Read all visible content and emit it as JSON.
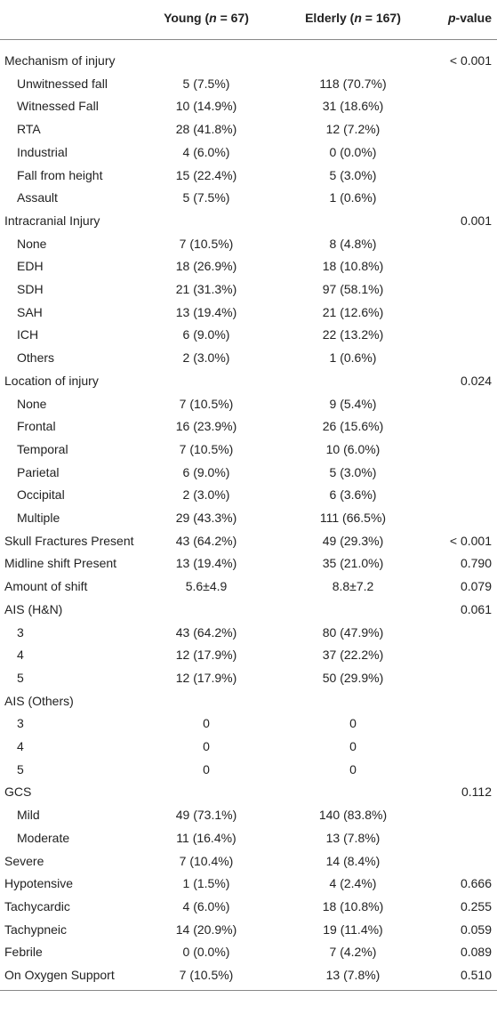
{
  "table": {
    "header": [
      {
        "parts": [
          "Young (",
          "n",
          " = 67)"
        ],
        "italic": [
          false,
          true,
          false
        ]
      },
      {
        "parts": [
          "Elderly (",
          "n",
          " = 167)"
        ],
        "italic": [
          false,
          true,
          false
        ]
      },
      {
        "parts": [
          "p",
          "-value"
        ],
        "italic": [
          true,
          false
        ]
      }
    ],
    "rows": [
      {
        "label": "Mechanism of injury",
        "p": "< 0.001",
        "indent": false
      },
      {
        "label": "Unwitnessed fall",
        "young": "5 (7.5%)",
        "elderly": "118 (70.7%)",
        "indent": true
      },
      {
        "label": "Witnessed Fall",
        "young": "10 (14.9%)",
        "elderly": "31 (18.6%)",
        "indent": true
      },
      {
        "label": "RTA",
        "young": "28 (41.8%)",
        "elderly": "12 (7.2%)",
        "indent": true
      },
      {
        "label": "Industrial",
        "young": "4 (6.0%)",
        "elderly": "0 (0.0%)",
        "indent": true
      },
      {
        "label": "Fall from height",
        "young": "15 (22.4%)",
        "elderly": "5 (3.0%)",
        "indent": true
      },
      {
        "label": "Assault",
        "young": "5 (7.5%)",
        "elderly": "1 (0.6%)",
        "indent": true
      },
      {
        "label": "Intracranial Injury",
        "p": "0.001",
        "indent": false
      },
      {
        "label": "None",
        "young": "7 (10.5%)",
        "elderly": "8 (4.8%)",
        "indent": true
      },
      {
        "label": "EDH",
        "young": "18 (26.9%)",
        "elderly": "18 (10.8%)",
        "indent": true
      },
      {
        "label": "SDH",
        "young": "21 (31.3%)",
        "elderly": "97 (58.1%)",
        "indent": true
      },
      {
        "label": "SAH",
        "young": "13 (19.4%)",
        "elderly": "21 (12.6%)",
        "indent": true
      },
      {
        "label": "ICH",
        "young": "6 (9.0%)",
        "elderly": "22 (13.2%)",
        "indent": true
      },
      {
        "label": "Others",
        "young": "2 (3.0%)",
        "elderly": "1 (0.6%)",
        "indent": true
      },
      {
        "label": "Location of injury",
        "p": "0.024",
        "indent": false
      },
      {
        "label": "None",
        "young": "7 (10.5%)",
        "elderly": "9 (5.4%)",
        "indent": true
      },
      {
        "label": "Frontal",
        "young": "16 (23.9%)",
        "elderly": "26 (15.6%)",
        "indent": true
      },
      {
        "label": "Temporal",
        "young": "7 (10.5%)",
        "elderly": "10 (6.0%)",
        "indent": true
      },
      {
        "label": "Parietal",
        "young": "6 (9.0%)",
        "elderly": "5 (3.0%)",
        "indent": true
      },
      {
        "label": "Occipital",
        "young": "2 (3.0%)",
        "elderly": "6 (3.6%)",
        "indent": true
      },
      {
        "label": "Multiple",
        "young": "29 (43.3%)",
        "elderly": "111 (66.5%)",
        "indent": true
      },
      {
        "label": "Skull Fractures Present",
        "young": "43 (64.2%)",
        "elderly": "49 (29.3%)",
        "p": "< 0.001",
        "indent": false
      },
      {
        "label": "Midline shift Present",
        "young": "13 (19.4%)",
        "elderly": "35 (21.0%)",
        "p": "0.790",
        "indent": false
      },
      {
        "label": "Amount of shift",
        "young": "5.6±4.9",
        "elderly": "8.8±7.2",
        "p": "0.079",
        "indent": false
      },
      {
        "label": "AIS (H&N)",
        "p": "0.061",
        "indent": false
      },
      {
        "label": "3",
        "young": "43 (64.2%)",
        "elderly": "80 (47.9%)",
        "indent": true
      },
      {
        "label": "4",
        "young": "12 (17.9%)",
        "elderly": "37 (22.2%)",
        "indent": true
      },
      {
        "label": "5",
        "young": "12 (17.9%)",
        "elderly": "50 (29.9%)",
        "indent": true
      },
      {
        "label": "AIS (Others)",
        "indent": false
      },
      {
        "label": "3",
        "young": "0",
        "elderly": "0",
        "indent": true
      },
      {
        "label": "4",
        "young": "0",
        "elderly": "0",
        "indent": true
      },
      {
        "label": "5",
        "young": "0",
        "elderly": "0",
        "indent": true
      },
      {
        "label": "GCS",
        "p": "0.112",
        "indent": false
      },
      {
        "label": "Mild",
        "young": "49 (73.1%)",
        "elderly": "140 (83.8%)",
        "indent": true
      },
      {
        "label": "Moderate",
        "young": "11 (16.4%)",
        "elderly": "13 (7.8%)",
        "indent": true
      },
      {
        "label": "Severe",
        "young": "7 (10.4%)",
        "elderly": "14 (8.4%)",
        "indent": false
      },
      {
        "label": "Hypotensive",
        "young": "1 (1.5%)",
        "elderly": "4 (2.4%)",
        "p": "0.666",
        "indent": false
      },
      {
        "label": "Tachycardic",
        "young": "4 (6.0%)",
        "elderly": "18 (10.8%)",
        "p": "0.255",
        "indent": false
      },
      {
        "label": "Tachypneic",
        "young": "14 (20.9%)",
        "elderly": "19 (11.4%)",
        "p": "0.059",
        "indent": false
      },
      {
        "label": "Febrile",
        "young": "0 (0.0%)",
        "elderly": "7 (4.2%)",
        "p": "0.089",
        "indent": false
      },
      {
        "label": "On Oxygen Support",
        "young": "7 (10.5%)",
        "elderly": "13 (7.8%)",
        "p": "0.510",
        "indent": false
      }
    ]
  }
}
